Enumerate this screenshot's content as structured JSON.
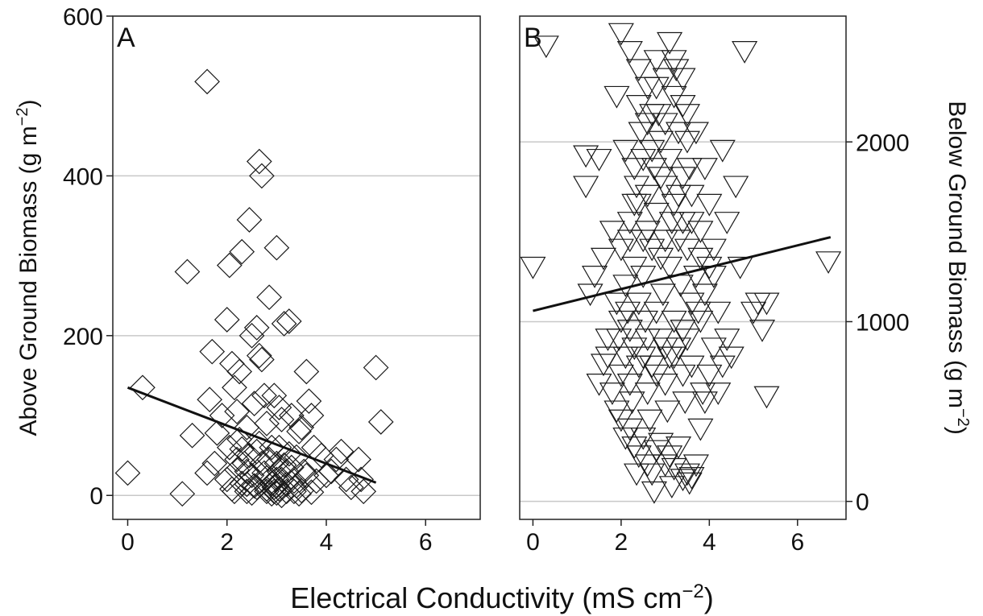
{
  "figure": {
    "xlabel_main": "Electrical Conductivity (mS cm",
    "xlabel_sup": "−2",
    "xlabel_end": ")"
  },
  "chart_data": [
    {
      "type": "scatter",
      "panel_label": "A",
      "marker": "diamond",
      "ylabel_main": "Above Ground Biomass (g m",
      "ylabel_sup": "−2",
      "ylabel_end": ")",
      "yaxis_side": "left",
      "xlim": [
        -0.3,
        7.1
      ],
      "ylim": [
        -30,
        600
      ],
      "xticks": [
        0,
        2,
        4,
        6
      ],
      "yticks": [
        0,
        200,
        400,
        600
      ],
      "grid": "horizontal",
      "trend": {
        "x": [
          0,
          5
        ],
        "y": [
          135,
          16
        ]
      },
      "points": [
        [
          0,
          28
        ],
        [
          0.3,
          135
        ],
        [
          1.1,
          2
        ],
        [
          1.2,
          280
        ],
        [
          1.3,
          75
        ],
        [
          1.6,
          28
        ],
        [
          1.6,
          518
        ],
        [
          1.65,
          120
        ],
        [
          1.7,
          180
        ],
        [
          1.75,
          40
        ],
        [
          1.8,
          78
        ],
        [
          1.9,
          100
        ],
        [
          2.0,
          220
        ],
        [
          2.05,
          288
        ],
        [
          2.1,
          165
        ],
        [
          2.15,
          135
        ],
        [
          2.2,
          105
        ],
        [
          2.25,
          155
        ],
        [
          2.3,
          305
        ],
        [
          2.3,
          58
        ],
        [
          2.4,
          85
        ],
        [
          2.45,
          345
        ],
        [
          2.5,
          200
        ],
        [
          2.55,
          115
        ],
        [
          2.6,
          210
        ],
        [
          2.65,
          418
        ],
        [
          2.65,
          175
        ],
        [
          2.7,
          170
        ],
        [
          2.7,
          400
        ],
        [
          2.75,
          125
        ],
        [
          2.8,
          90
        ],
        [
          2.85,
          248
        ],
        [
          2.9,
          60
        ],
        [
          2.95,
          125
        ],
        [
          3.0,
          310
        ],
        [
          3.05,
          110
        ],
        [
          3.1,
          95
        ],
        [
          3.15,
          215
        ],
        [
          3.25,
          218
        ],
        [
          3.3,
          100
        ],
        [
          3.45,
          80
        ],
        [
          3.5,
          85
        ],
        [
          3.6,
          155
        ],
        [
          3.65,
          118
        ],
        [
          3.7,
          100
        ],
        [
          3.75,
          60
        ],
        [
          3.9,
          50
        ],
        [
          4.0,
          25
        ],
        [
          4.1,
          30
        ],
        [
          4.2,
          45
        ],
        [
          4.3,
          55
        ],
        [
          4.4,
          20
        ],
        [
          4.5,
          10
        ],
        [
          4.65,
          45
        ],
        [
          4.7,
          20
        ],
        [
          4.75,
          5
        ],
        [
          5.0,
          160
        ],
        [
          5.1,
          92
        ],
        [
          2.0,
          20
        ],
        [
          2.1,
          8
        ],
        [
          2.2,
          32
        ],
        [
          2.3,
          15
        ],
        [
          2.4,
          5
        ],
        [
          2.5,
          25
        ],
        [
          2.6,
          10
        ],
        [
          2.7,
          40
        ],
        [
          2.8,
          5
        ],
        [
          2.9,
          15
        ],
        [
          3.0,
          3
        ],
        [
          3.05,
          8
        ],
        [
          3.1,
          20
        ],
        [
          3.2,
          5
        ],
        [
          3.3,
          35
        ],
        [
          3.4,
          12
        ],
        [
          3.5,
          6
        ],
        [
          3.6,
          25
        ],
        [
          3.7,
          4
        ],
        [
          3.8,
          18
        ],
        [
          2.2,
          45
        ],
        [
          2.4,
          30
        ],
        [
          2.6,
          55
        ],
        [
          2.8,
          22
        ],
        [
          3.0,
          40
        ],
        [
          3.2,
          30
        ],
        [
          3.4,
          48
        ],
        [
          2.15,
          5
        ],
        [
          2.35,
          40
        ],
        [
          2.55,
          12
        ],
        [
          2.75,
          28
        ],
        [
          2.95,
          10
        ],
        [
          3.15,
          38
        ],
        [
          3.35,
          5
        ],
        [
          3.55,
          30
        ],
        [
          2.05,
          60
        ],
        [
          2.25,
          70
        ],
        [
          2.45,
          50
        ],
        [
          2.65,
          65
        ],
        [
          2.85,
          45
        ],
        [
          3.05,
          60
        ],
        [
          3.25,
          52
        ],
        [
          2.9,
          2
        ],
        [
          3.0,
          12
        ],
        [
          3.1,
          0
        ],
        [
          2.8,
          8
        ],
        [
          3.2,
          14
        ],
        [
          3.0,
          20
        ],
        [
          2.95,
          5
        ],
        [
          3.05,
          30
        ],
        [
          3.35,
          18
        ],
        [
          3.45,
          2
        ],
        [
          2.5,
          3
        ],
        [
          2.4,
          14
        ]
      ]
    },
    {
      "type": "scatter",
      "panel_label": "B",
      "marker": "triangle-down",
      "ylabel_main": "Below Ground Biomass (g m",
      "ylabel_sup": "−2",
      "ylabel_end": ")",
      "yaxis_side": "right",
      "xlim": [
        -0.3,
        7.1
      ],
      "ylim": [
        -100,
        2700
      ],
      "xticks": [
        0,
        2,
        4,
        6
      ],
      "yticks": [
        0,
        1000,
        2000
      ],
      "grid": "horizontal",
      "trend": {
        "x": [
          0,
          6.75
        ],
        "y": [
          1060,
          1470
        ]
      },
      "points": [
        [
          0,
          1300
        ],
        [
          0.3,
          2530
        ],
        [
          1.2,
          1750
        ],
        [
          1.2,
          1920
        ],
        [
          1.3,
          1150
        ],
        [
          1.4,
          1250
        ],
        [
          1.5,
          1900
        ],
        [
          1.6,
          1350
        ],
        [
          1.7,
          800
        ],
        [
          1.8,
          1500
        ],
        [
          1.9,
          2250
        ],
        [
          2.0,
          2600
        ],
        [
          2.1,
          1950
        ],
        [
          2.2,
          2500
        ],
        [
          2.3,
          1650
        ],
        [
          2.4,
          2400
        ],
        [
          2.5,
          1450
        ],
        [
          2.6,
          2300
        ],
        [
          2.7,
          2150
        ],
        [
          2.8,
          2450
        ],
        [
          2.9,
          1800
        ],
        [
          3.0,
          2100
        ],
        [
          3.1,
          2550
        ],
        [
          3.2,
          2450
        ],
        [
          3.3,
          1700
        ],
        [
          3.4,
          2350
        ],
        [
          3.5,
          2000
        ],
        [
          3.6,
          1550
        ],
        [
          3.7,
          2050
        ],
        [
          3.8,
          1350
        ],
        [
          3.9,
          1850
        ],
        [
          4.0,
          1650
        ],
        [
          4.1,
          1250
        ],
        [
          4.2,
          1050
        ],
        [
          4.3,
          1950
        ],
        [
          4.4,
          1550
        ],
        [
          4.6,
          1750
        ],
        [
          4.7,
          1300
        ],
        [
          4.8,
          2500
        ],
        [
          5.0,
          1050
        ],
        [
          5.1,
          1100
        ],
        [
          5.2,
          950
        ],
        [
          5.3,
          1100
        ],
        [
          5.3,
          580
        ],
        [
          6.7,
          1330
        ],
        [
          4.5,
          800
        ],
        [
          1.6,
          760
        ],
        [
          1.5,
          650
        ],
        [
          1.7,
          900
        ],
        [
          1.8,
          600
        ],
        [
          1.9,
          500
        ],
        [
          2.0,
          450
        ],
        [
          2.1,
          350
        ],
        [
          2.2,
          400
        ],
        [
          2.3,
          300
        ],
        [
          2.4,
          250
        ],
        [
          2.5,
          350
        ],
        [
          2.6,
          200
        ],
        [
          2.7,
          150
        ],
        [
          2.8,
          280
        ],
        [
          2.9,
          320
        ],
        [
          3.0,
          200
        ],
        [
          3.1,
          250
        ],
        [
          3.2,
          180
        ],
        [
          3.3,
          300
        ],
        [
          3.4,
          120
        ],
        [
          3.5,
          150
        ],
        [
          3.6,
          130
        ],
        [
          3.7,
          200
        ],
        [
          3.8,
          400
        ],
        [
          3.9,
          550
        ],
        [
          4.0,
          700
        ],
        [
          4.1,
          850
        ],
        [
          4.2,
          600
        ],
        [
          4.3,
          750
        ],
        [
          4.4,
          900
        ],
        [
          2.0,
          1000
        ],
        [
          2.2,
          950
        ],
        [
          2.4,
          1100
        ],
        [
          2.6,
          900
        ],
        [
          2.8,
          1050
        ],
        [
          3.0,
          850
        ],
        [
          3.2,
          1000
        ],
        [
          3.4,
          950
        ],
        [
          3.6,
          1100
        ],
        [
          3.8,
          1000
        ],
        [
          2.1,
          1200
        ],
        [
          2.3,
          1300
        ],
        [
          2.5,
          1250
        ],
        [
          2.7,
          1400
        ],
        [
          2.9,
          1350
        ],
        [
          3.1,
          1300
        ],
        [
          3.3,
          1450
        ],
        [
          3.5,
          1400
        ],
        [
          3.7,
          1250
        ],
        [
          2.2,
          1550
        ],
        [
          2.4,
          1650
        ],
        [
          2.6,
          1700
        ],
        [
          2.8,
          1600
        ],
        [
          3.0,
          1750
        ],
        [
          3.2,
          1650
        ],
        [
          3.4,
          1800
        ],
        [
          3.6,
          1700
        ],
        [
          2.3,
          1850
        ],
        [
          2.5,
          1900
        ],
        [
          2.7,
          1950
        ],
        [
          2.9,
          2000
        ],
        [
          3.1,
          1900
        ],
        [
          3.3,
          2050
        ],
        [
          3.5,
          2150
        ],
        [
          2.4,
          2200
        ],
        [
          2.6,
          2100
        ],
        [
          2.8,
          2300
        ],
        [
          3.0,
          2350
        ],
        [
          3.2,
          2250
        ],
        [
          3.4,
          2200
        ],
        [
          2.0,
          700
        ],
        [
          2.2,
          650
        ],
        [
          2.4,
          750
        ],
        [
          2.6,
          600
        ],
        [
          2.8,
          700
        ],
        [
          3.0,
          650
        ],
        [
          3.2,
          800
        ],
        [
          3.4,
          700
        ],
        [
          3.6,
          750
        ],
        [
          2.1,
          800
        ],
        [
          2.3,
          850
        ],
        [
          2.5,
          800
        ],
        [
          2.7,
          750
        ],
        [
          2.9,
          900
        ],
        [
          3.1,
          800
        ],
        [
          3.3,
          850
        ],
        [
          3.5,
          900
        ],
        [
          2.0,
          1400
        ],
        [
          2.2,
          1450
        ],
        [
          2.6,
          1500
        ],
        [
          3.0,
          1450
        ],
        [
          3.4,
          1550
        ],
        [
          3.8,
          1500
        ],
        [
          1.9,
          1100
        ],
        [
          4.0,
          1300
        ],
        [
          3.9,
          1150
        ],
        [
          4.1,
          1400
        ],
        [
          2.45,
          2050
        ],
        [
          2.85,
          2150
        ],
        [
          3.25,
          2400
        ],
        [
          2.35,
          1750
        ],
        [
          2.75,
          1850
        ],
        [
          3.15,
          1550
        ],
        [
          3.55,
          1850
        ],
        [
          1.95,
          900
        ],
        [
          2.15,
          1050
        ],
        [
          2.55,
          1000
        ],
        [
          2.95,
          1150
        ],
        [
          3.35,
          1200
        ],
        [
          3.75,
          1050
        ],
        [
          2.25,
          550
        ],
        [
          2.65,
          450
        ],
        [
          3.05,
          500
        ],
        [
          3.45,
          550
        ],
        [
          3.85,
          600
        ],
        [
          2.35,
          150
        ],
        [
          2.75,
          50
        ],
        [
          3.15,
          80
        ],
        [
          3.55,
          100
        ]
      ]
    }
  ]
}
